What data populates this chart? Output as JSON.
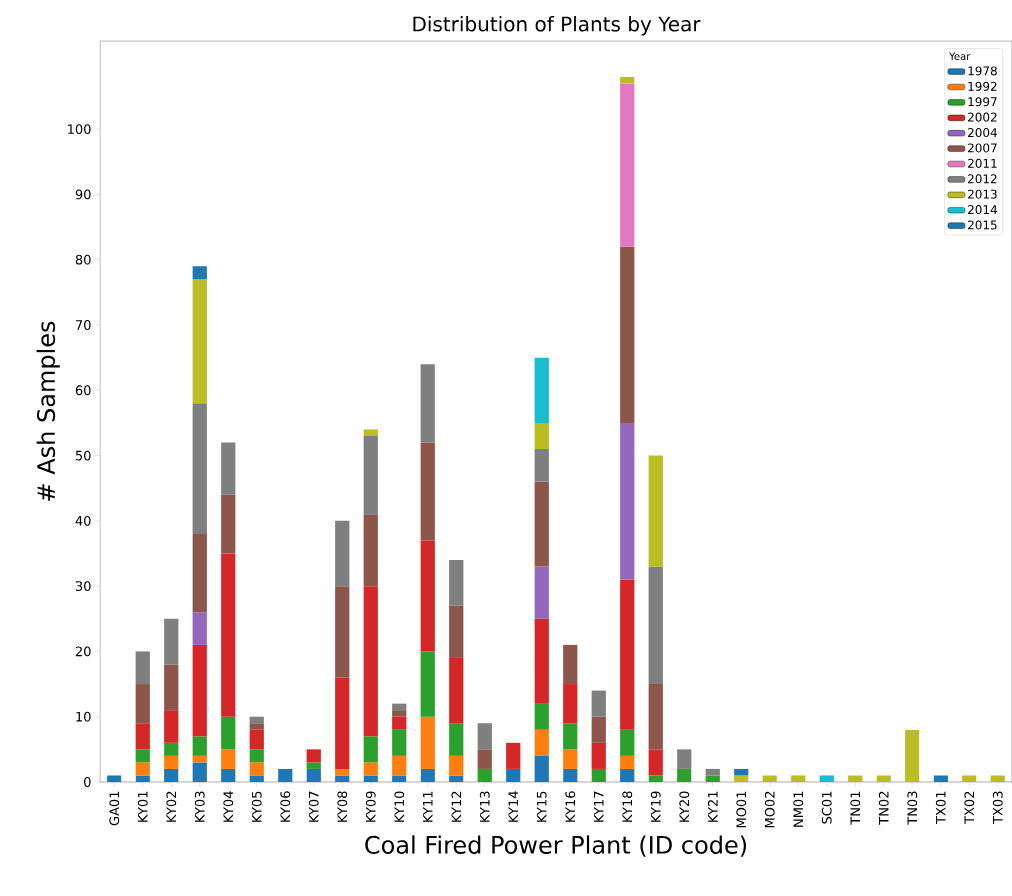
{
  "chart_data": {
    "type": "bar",
    "stacked": true,
    "title": "Distribution of Plants by Year",
    "xlabel": "Coal Fired Power Plant (ID code)",
    "ylabel": "# Ash Samples",
    "legend_title": "Year",
    "legend": "top right",
    "grid": false,
    "categories": [
      "GA01",
      "KY01",
      "KY02",
      "KY03",
      "KY04",
      "KY05",
      "KY06",
      "KY07",
      "KY08",
      "KY09",
      "KY10",
      "KY11",
      "KY12",
      "KY13",
      "KY14",
      "KY15",
      "KY16",
      "KY17",
      "KY18",
      "KY19",
      "KY20",
      "KY21",
      "MO01",
      "MO02",
      "NM01",
      "SC01",
      "TN01",
      "TN02",
      "TN03",
      "TX01",
      "TX02",
      "TX03"
    ],
    "ylim": [
      0,
      113.5
    ],
    "yticks": [
      0,
      10,
      20,
      30,
      40,
      50,
      60,
      70,
      80,
      90,
      100
    ],
    "series": [
      {
        "name": "1978",
        "color": "#1f77b4",
        "values": [
          1,
          1,
          2,
          3,
          2,
          1,
          2,
          2,
          1,
          1,
          1,
          2,
          1,
          null,
          2,
          4,
          2,
          null,
          2,
          null,
          null,
          null,
          null,
          null,
          null,
          null,
          null,
          null,
          null,
          1,
          null,
          null
        ]
      },
      {
        "name": "1992",
        "color": "#ff7f0e",
        "values": [
          null,
          2,
          2,
          1,
          3,
          2,
          null,
          null,
          1,
          2,
          3,
          8,
          3,
          null,
          null,
          4,
          3,
          null,
          2,
          null,
          null,
          null,
          null,
          null,
          null,
          null,
          null,
          null,
          null,
          null,
          null,
          null
        ]
      },
      {
        "name": "1997",
        "color": "#2ca02c",
        "values": [
          null,
          2,
          2,
          3,
          5,
          2,
          null,
          1,
          null,
          4,
          4,
          10,
          5,
          2,
          null,
          4,
          4,
          2,
          4,
          1,
          2,
          1,
          null,
          null,
          null,
          null,
          null,
          null,
          null,
          null,
          null,
          null
        ]
      },
      {
        "name": "2002",
        "color": "#d62728",
        "values": [
          null,
          4,
          5,
          14,
          25,
          3,
          null,
          2,
          14,
          23,
          2,
          17,
          10,
          null,
          4,
          13,
          6,
          4,
          23,
          4,
          null,
          null,
          null,
          null,
          null,
          null,
          null,
          null,
          null,
          null,
          null,
          null
        ]
      },
      {
        "name": "2004",
        "color": "#9467bd",
        "values": [
          null,
          null,
          null,
          5,
          null,
          null,
          null,
          null,
          null,
          null,
          null,
          null,
          null,
          null,
          null,
          8,
          null,
          null,
          24,
          null,
          null,
          null,
          null,
          null,
          null,
          null,
          null,
          null,
          null,
          null,
          null,
          null
        ]
      },
      {
        "name": "2007",
        "color": "#8c564b",
        "values": [
          null,
          6,
          7,
          12,
          9,
          1,
          null,
          null,
          14,
          11,
          1,
          15,
          8,
          3,
          null,
          13,
          6,
          4,
          27,
          10,
          null,
          null,
          null,
          null,
          null,
          null,
          null,
          null,
          null,
          null,
          null,
          null
        ]
      },
      {
        "name": "2011",
        "color": "#e377c2",
        "values": [
          null,
          null,
          null,
          null,
          null,
          null,
          null,
          null,
          null,
          null,
          null,
          null,
          null,
          null,
          null,
          null,
          null,
          null,
          25,
          null,
          null,
          null,
          null,
          null,
          null,
          null,
          null,
          null,
          null,
          null,
          null,
          null
        ]
      },
      {
        "name": "2012",
        "color": "#7f7f7f",
        "values": [
          null,
          5,
          7,
          20,
          8,
          1,
          null,
          null,
          10,
          12,
          1,
          12,
          7,
          4,
          null,
          5,
          null,
          4,
          null,
          18,
          3,
          1,
          null,
          null,
          null,
          null,
          null,
          null,
          null,
          null,
          null,
          null
        ]
      },
      {
        "name": "2013",
        "color": "#bcbd22",
        "values": [
          null,
          null,
          null,
          19,
          null,
          null,
          null,
          null,
          null,
          1,
          null,
          null,
          null,
          null,
          null,
          4,
          null,
          null,
          1,
          17,
          null,
          null,
          1,
          1,
          1,
          null,
          1,
          1,
          8,
          null,
          1,
          1
        ]
      },
      {
        "name": "2014",
        "color": "#17becf",
        "values": [
          null,
          null,
          null,
          null,
          null,
          null,
          null,
          null,
          null,
          null,
          null,
          null,
          null,
          null,
          null,
          10,
          null,
          null,
          null,
          null,
          null,
          null,
          null,
          null,
          null,
          1,
          null,
          null,
          null,
          null,
          null,
          null
        ]
      },
      {
        "name": "2015",
        "color": "#1f77b4",
        "values": [
          null,
          null,
          null,
          2,
          null,
          null,
          null,
          null,
          null,
          null,
          null,
          null,
          null,
          null,
          null,
          null,
          null,
          null,
          null,
          null,
          null,
          null,
          1,
          null,
          null,
          null,
          null,
          null,
          null,
          null,
          null,
          null
        ]
      }
    ]
  }
}
